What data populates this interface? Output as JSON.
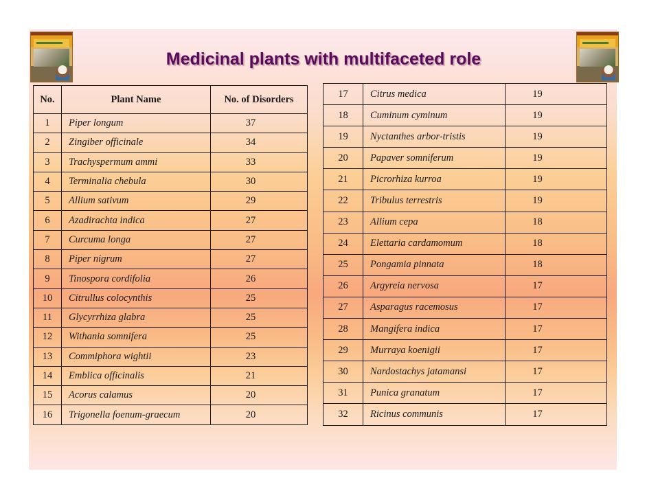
{
  "slide": {
    "title": "Medicinal plants with multifaceted role",
    "logos": [
      {
        "name": "book-cover-logo-left",
        "caption": "Indigenous Herbal Medicines"
      },
      {
        "name": "book-cover-logo-right",
        "caption": "Indigenous Herbal Medicines"
      }
    ],
    "colors": {
      "title": "#5a0a5a",
      "background_top": "#fde9ec",
      "background_mid": "#f8a97e",
      "border": "#1a1a1a"
    }
  },
  "table_left": {
    "headers": [
      "No.",
      "Plant Name",
      "No. of Disorders"
    ],
    "rows": [
      {
        "no": "1",
        "name": "Piper longum",
        "count": "37"
      },
      {
        "no": "2",
        "name": "Zingiber officinale",
        "count": "34"
      },
      {
        "no": "3",
        "name": "Trachyspermum ammi",
        "count": "33"
      },
      {
        "no": "4",
        "name": "Terminalia chebula",
        "count": "30"
      },
      {
        "no": "5",
        "name": "Allium sativum",
        "count": "29"
      },
      {
        "no": "6",
        "name": "Azadirachta indica",
        "count": "27"
      },
      {
        "no": "7",
        "name": "Curcuma longa",
        "count": "27"
      },
      {
        "no": "8",
        "name": "Piper nigrum",
        "count": "27"
      },
      {
        "no": "9",
        "name": "Tinospora cordifolia",
        "count": "26"
      },
      {
        "no": "10",
        "name": "Citrullus colocynthis",
        "count": "25"
      },
      {
        "no": "11",
        "name": "Glycyrrhiza glabra",
        "count": "25"
      },
      {
        "no": "12",
        "name": "Withania somnifera",
        "count": "25"
      },
      {
        "no": "13",
        "name": "Commiphora wightii",
        "count": "23"
      },
      {
        "no": "14",
        "name": "Emblica officinalis",
        "count": "21"
      },
      {
        "no": "15",
        "name": "Acorus calamus",
        "count": "20"
      },
      {
        "no": "16",
        "name": "Trigonella foenum-graecum",
        "count": "20"
      }
    ]
  },
  "table_right": {
    "rows": [
      {
        "no": "17",
        "name": "Citrus medica",
        "count": "19"
      },
      {
        "no": "18",
        "name": "Cuminum cyminum",
        "count": "19"
      },
      {
        "no": "19",
        "name": "Nyctanthes arbor-tristis",
        "count": "19"
      },
      {
        "no": "20",
        "name": "Papaver somniferum",
        "count": "19"
      },
      {
        "no": "21",
        "name": "Picrorhiza kurroa",
        "count": "19"
      },
      {
        "no": "22",
        "name": "Tribulus terrestris",
        "count": "19"
      },
      {
        "no": "23",
        "name": "Allium cepa",
        "count": "18"
      },
      {
        "no": "24",
        "name": "Elettaria cardamomum",
        "count": "18"
      },
      {
        "no": "25",
        "name": "Pongamia pinnata",
        "count": "18"
      },
      {
        "no": "26",
        "name": "Argyreia nervosa",
        "count": "17"
      },
      {
        "no": "27",
        "name": "Asparagus racemosus",
        "count": "17"
      },
      {
        "no": "28",
        "name": "Mangifera indica",
        "count": "17"
      },
      {
        "no": "29",
        "name": "Murraya koenigii",
        "count": "17"
      },
      {
        "no": "30",
        "name": "Nardostachys jatamansi",
        "count": "17"
      },
      {
        "no": "31",
        "name": "Punica granatum",
        "count": "17"
      },
      {
        "no": "32",
        "name": "Ricinus communis",
        "count": "17"
      }
    ]
  }
}
